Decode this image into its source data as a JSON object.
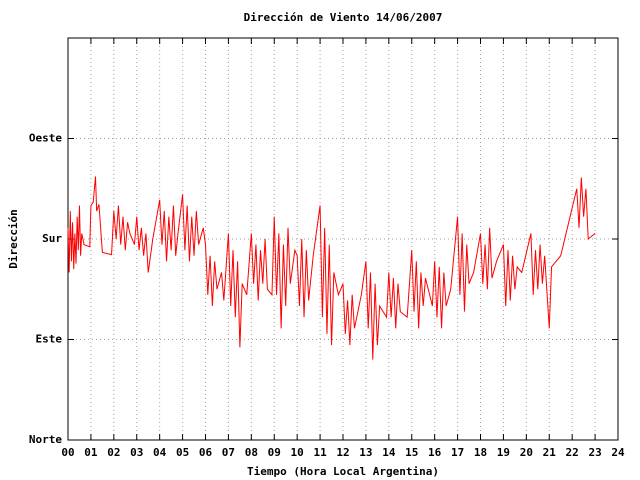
{
  "chart_data": {
    "type": "line",
    "title": "Dirección de Viento 14/06/2007",
    "xlabel": "Tiempo (Hora Local Argentina)",
    "ylabel": "Dirección",
    "color": "#ff0000",
    "grid": true,
    "xlim": [
      0,
      24
    ],
    "ylim": [
      0,
      360
    ],
    "xticks": [
      {
        "value": 0,
        "label": "00"
      },
      {
        "value": 1,
        "label": "01"
      },
      {
        "value": 2,
        "label": "02"
      },
      {
        "value": 3,
        "label": "03"
      },
      {
        "value": 4,
        "label": "04"
      },
      {
        "value": 5,
        "label": "05"
      },
      {
        "value": 6,
        "label": "06"
      },
      {
        "value": 7,
        "label": "07"
      },
      {
        "value": 8,
        "label": "08"
      },
      {
        "value": 9,
        "label": "09"
      },
      10,
      11,
      12,
      13,
      14,
      15,
      16,
      17,
      18,
      19,
      20,
      21,
      22,
      23,
      24
    ],
    "yticks": [
      {
        "value": 0,
        "label": "Norte"
      },
      {
        "value": 90,
        "label": "Este"
      },
      {
        "value": 180,
        "label": "Sur"
      },
      {
        "value": 270,
        "label": "Oeste"
      }
    ],
    "x": [
      0,
      0.05,
      0.1,
      0.15,
      0.2,
      0.25,
      0.3,
      0.35,
      0.4,
      0.45,
      0.5,
      0.55,
      0.6,
      0.7,
      0.95,
      1.0,
      1.1,
      1.2,
      1.25,
      1.35,
      1.5,
      1.9,
      2.0,
      2.1,
      2.2,
      2.3,
      2.4,
      2.5,
      2.6,
      2.7,
      2.9,
      3.0,
      3.1,
      3.2,
      3.3,
      3.4,
      3.5,
      3.7,
      4.0,
      4.1,
      4.2,
      4.3,
      4.4,
      4.5,
      4.6,
      4.7,
      4.8,
      5.0,
      5.1,
      5.2,
      5.3,
      5.4,
      5.5,
      5.6,
      5.7,
      5.9,
      6.0,
      6.1,
      6.2,
      6.3,
      6.4,
      6.5,
      6.7,
      6.8,
      7.0,
      7.1,
      7.2,
      7.3,
      7.4,
      7.5,
      7.6,
      7.8,
      8.0,
      8.1,
      8.2,
      8.3,
      8.4,
      8.5,
      8.6,
      8.7,
      8.9,
      9.0,
      9.1,
      9.2,
      9.3,
      9.4,
      9.5,
      9.6,
      9.7,
      9.9,
      10.0,
      10.1,
      10.2,
      10.3,
      10.4,
      10.5,
      10.7,
      11.0,
      11.1,
      11.2,
      11.3,
      11.4,
      11.5,
      11.6,
      11.8,
      12.0,
      12.1,
      12.2,
      12.3,
      12.4,
      12.5,
      12.8,
      13.0,
      13.1,
      13.2,
      13.3,
      13.4,
      13.5,
      13.6,
      13.9,
      14.0,
      14.1,
      14.2,
      14.3,
      14.4,
      14.5,
      14.8,
      15.0,
      15.1,
      15.2,
      15.3,
      15.4,
      15.5,
      15.6,
      15.9,
      16.0,
      16.1,
      16.2,
      16.3,
      16.4,
      16.5,
      16.7,
      17.0,
      17.1,
      17.2,
      17.3,
      17.4,
      17.5,
      17.7,
      18.0,
      18.1,
      18.2,
      18.3,
      18.4,
      18.5,
      18.7,
      19.0,
      19.1,
      19.2,
      19.3,
      19.4,
      19.5,
      19.6,
      19.8,
      20.2,
      20.3,
      20.4,
      20.5,
      20.6,
      20.7,
      20.8,
      21.0,
      21.1,
      21.5,
      22.2,
      22.3,
      22.4,
      22.5,
      22.6,
      22.7,
      23.0
    ],
    "values": [
      190,
      150,
      205,
      160,
      195,
      153,
      185,
      158,
      200,
      170,
      210,
      165,
      185,
      175,
      173,
      210,
      213,
      236,
      205,
      211,
      168,
      166,
      205,
      180,
      210,
      175,
      200,
      170,
      195,
      185,
      175,
      200,
      170,
      190,
      165,
      185,
      150,
      180,
      215,
      175,
      205,
      160,
      200,
      170,
      210,
      165,
      185,
      220,
      170,
      210,
      160,
      200,
      165,
      205,
      175,
      190,
      175,
      130,
      165,
      120,
      160,
      135,
      150,
      125,
      185,
      120,
      170,
      110,
      160,
      83,
      140,
      130,
      185,
      140,
      175,
      125,
      170,
      140,
      180,
      135,
      130,
      200,
      130,
      185,
      100,
      175,
      120,
      190,
      140,
      170,
      165,
      120,
      180,
      110,
      170,
      125,
      165,
      210,
      110,
      190,
      95,
      175,
      85,
      150,
      130,
      140,
      95,
      125,
      85,
      130,
      100,
      130,
      160,
      100,
      150,
      72,
      140,
      85,
      120,
      110,
      150,
      110,
      145,
      100,
      140,
      115,
      110,
      170,
      115,
      160,
      100,
      150,
      120,
      145,
      120,
      160,
      110,
      155,
      100,
      150,
      120,
      135,
      200,
      130,
      185,
      115,
      175,
      140,
      150,
      185,
      140,
      175,
      135,
      190,
      145,
      160,
      175,
      120,
      170,
      125,
      165,
      135,
      155,
      150,
      185,
      130,
      170,
      135,
      175,
      140,
      165,
      100,
      155,
      165,
      225,
      190,
      235,
      200,
      225,
      180,
      185
    ]
  }
}
